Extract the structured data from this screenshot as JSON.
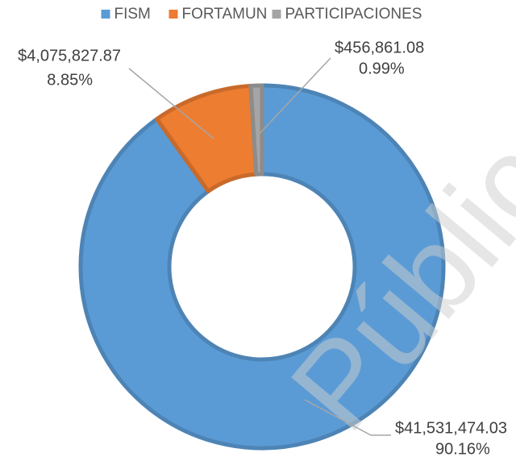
{
  "chart_data": {
    "type": "donut",
    "categories": [
      "FISM",
      "FORTAMUN",
      "PARTICIPACIONES"
    ],
    "values": [
      41531474.03,
      4075827.87,
      456861.08
    ],
    "value_labels": [
      "$41,531,474.03",
      "$4,075,827.87",
      "$456,861.08"
    ],
    "percentages": [
      90.16,
      8.85,
      0.99
    ],
    "percentage_labels": [
      "90.16%",
      "8.85%",
      "0.99%"
    ],
    "colors": [
      "#5b9bd5",
      "#ed7d31",
      "#a5a5a5"
    ],
    "legend": "top",
    "watermark": "Pública"
  }
}
